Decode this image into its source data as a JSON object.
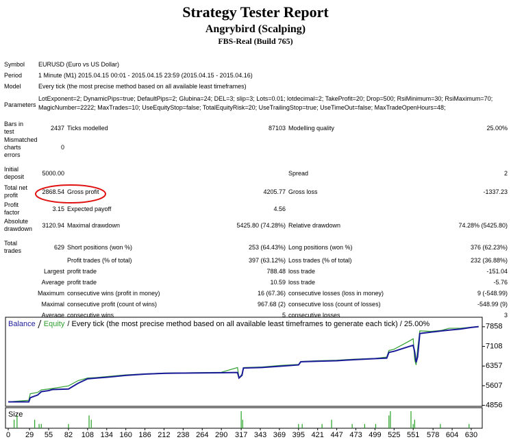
{
  "header": {
    "title": "Strategy Tester Report",
    "subtitle": "Angrybird (Scalping)",
    "build": "FBS-Real (Build 765)"
  },
  "table": {
    "rows": [
      [
        "Symbol",
        "EURUSD (Euro vs US Dollar)"
      ],
      [
        "Period",
        "1 Minute (M1) 2015.04.15 00:01 - 2015.04.15 23:59 (2015.04.15 - 2015.04.16)"
      ],
      [
        "Model",
        "Every tick (the most precise method based on all available least timeframes)"
      ],
      [
        "Parameters",
        "LotExponent=2; DynamicPips=true; DefaultPips=2; Glubina=24; DEL=3; slip=3; Lots=0.01; lotdecimal=2; TakeProfit=20; Drop=500; RsiMinimum=30; RsiMaximum=70; MagicNumber=2222; MaxTrades=10; UseEquityStop=false; TotalEquityRisk=20; UseTrailingStop=true; UseTimeOut=false; MaxTradeOpenHours=48;"
      ],
      [
        "Bars in test",
        "2437",
        "Ticks modelled",
        "87103",
        "Modelling quality",
        "25.00%"
      ],
      [
        "Mismatched charts errors",
        "0"
      ],
      [
        "Initial deposit",
        "5000.00",
        "Spread",
        "2"
      ],
      [
        "Total net profit",
        "2868.54",
        "Gross profit",
        "4205.77",
        "Gross loss",
        "-1337.23"
      ],
      [
        "Profit factor",
        "3.15",
        "Expected payoff",
        "4.56"
      ],
      [
        "Absolute drawdown",
        "3120.94",
        "Maximal drawdown",
        "5425.80 (74.28%)",
        "Relative drawdown",
        "74.28% (5425.80)"
      ],
      [
        "Total trades",
        "629",
        "Short positions (won %)",
        "253 (64.43%)",
        "Long positions (won %)",
        "376 (62.23%)"
      ],
      [
        "Profit trades (% of total)",
        "397 (63.12%)",
        "Loss trades (% of total)",
        "232 (36.88%)"
      ],
      [
        "Largest",
        "profit trade",
        "788.48",
        "loss trade",
        "-151.04"
      ],
      [
        "Average",
        "profit trade",
        "10.59",
        "loss trade",
        "-5.76"
      ],
      [
        "Maximum",
        "consecutive wins (profit in money)",
        "16 (67.36)",
        "consecutive losses (loss in money)",
        "9 (-548.99)"
      ],
      [
        "Maximal",
        "consecutive profit (count of wins)",
        "967.68 (2)",
        "consecutive loss (count of losses)",
        "-548.99 (9)"
      ],
      [
        "Average",
        "consecutive wins",
        "5",
        "consecutive losses",
        "3"
      ]
    ]
  },
  "chart_data": {
    "type": "line",
    "description": "/ Every tick (the most precise method based on all available least timeframes to generate each tick) / 25.00%",
    "x": [
      0,
      28,
      30,
      40,
      45,
      55,
      60,
      82,
      95,
      108,
      120,
      135,
      160,
      186,
      212,
      240,
      290,
      312,
      314,
      318,
      320,
      345,
      370,
      395,
      398,
      420,
      447,
      470,
      500,
      515,
      518,
      525,
      545,
      551,
      553,
      555,
      557,
      560,
      575,
      590,
      600,
      615,
      630,
      640
    ],
    "series": [
      {
        "name": "Balance",
        "color": "#1b1b9a",
        "values": [
          4990,
          4990,
          5150,
          5250,
          5380,
          5420,
          5460,
          5480,
          5700,
          5870,
          5900,
          5930,
          6000,
          6050,
          6080,
          6090,
          6100,
          6110,
          5900,
          6000,
          6280,
          6300,
          6350,
          6400,
          6520,
          6540,
          6560,
          6600,
          6640,
          6660,
          6880,
          6920,
          7100,
          7150,
          6900,
          6500,
          6700,
          7600,
          7650,
          7700,
          7730,
          7770,
          7830,
          7860
        ]
      },
      {
        "name": "Equity",
        "color": "#2e9e2e",
        "values": [
          4990,
          5050,
          5300,
          5350,
          5450,
          5480,
          5500,
          5600,
          5800,
          5900,
          5920,
          5960,
          6020,
          6060,
          6090,
          6100,
          6120,
          6300,
          5900,
          6050,
          6300,
          6320,
          6380,
          6420,
          6530,
          6560,
          6580,
          6620,
          6650,
          6700,
          6950,
          7000,
          7300,
          7400,
          6600,
          6400,
          7000,
          7700,
          7680,
          7720,
          7800,
          7800,
          7840,
          7870
        ]
      }
    ],
    "xlim": [
      0,
      644
    ],
    "ylim": [
      4820,
      8220
    ],
    "xticks": [
      0,
      29,
      55,
      82,
      108,
      134,
      160,
      186,
      212,
      238,
      264,
      290,
      317,
      343,
      369,
      395,
      421,
      447,
      473,
      499,
      525,
      551,
      578,
      604,
      630
    ],
    "yticks": [
      4856,
      5607,
      6357,
      7108,
      7858
    ],
    "size_label": "Size",
    "size_color": "#22a022",
    "size_x": [
      8,
      12,
      36,
      42,
      45,
      82,
      110,
      113,
      317,
      319,
      395,
      400,
      427,
      440,
      468,
      485,
      500,
      518,
      520,
      548,
      551,
      553,
      588,
      627
    ],
    "size_values": [
      2,
      3,
      2,
      1,
      1,
      1,
      3,
      2,
      4,
      2,
      1,
      1,
      1,
      2,
      1,
      1,
      1,
      3,
      4,
      4,
      1,
      2,
      1,
      1
    ],
    "size_ylim": [
      0,
      4.5
    ]
  }
}
